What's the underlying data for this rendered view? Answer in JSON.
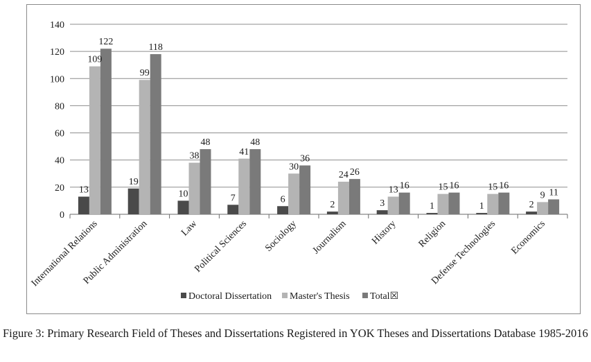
{
  "caption": "Figure 3: Primary Research Field of Theses and Dissertations Registered in YOK Theses and Dissertations Database 1985-2016",
  "chart_data": {
    "type": "bar",
    "title": "",
    "xlabel": "",
    "ylabel": "",
    "ylim": [
      0,
      140
    ],
    "yticks": [
      0,
      20,
      40,
      60,
      80,
      100,
      120,
      140
    ],
    "grid": true,
    "legend_position": "bottom",
    "categories": [
      "International Relations",
      "Public Administration",
      "Law",
      "Political Sciences",
      "Sociology",
      "Journalism",
      "History",
      "Religion",
      "Defense Technologies",
      "Economics"
    ],
    "series": [
      {
        "name": "Doctoral Dissertation",
        "color": "#4a4a4a",
        "values": [
          13,
          19,
          10,
          7,
          6,
          2,
          3,
          1,
          1,
          2
        ]
      },
      {
        "name": "Master's Thesis",
        "color": "#b4b4b4",
        "values": [
          109,
          99,
          38,
          41,
          30,
          24,
          13,
          15,
          15,
          9
        ]
      },
      {
        "name": "Total☒",
        "color": "#7a7a7a",
        "values": [
          122,
          118,
          48,
          48,
          36,
          26,
          16,
          16,
          16,
          11
        ]
      }
    ]
  }
}
